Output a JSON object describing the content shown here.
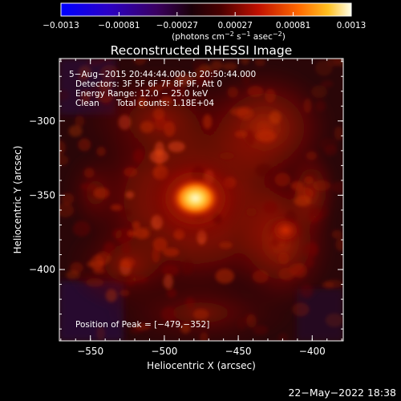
{
  "colorbar": {
    "tick_labels": [
      "−0.0013",
      "−0.00081",
      "−0.00027",
      "0.00027",
      "0.00081",
      "0.0013"
    ],
    "units_prefix": "(photons cm",
    "units_exp1": "−2",
    "units_mid1": " s",
    "units_exp2": "−1",
    "units_mid2": " asec",
    "units_exp3": "−2",
    "units_suffix": ")"
  },
  "title": "Reconstructed RHESSI Image",
  "annotations": {
    "time_range": "5−Aug−2015 20:44:44.000 to 20:50:44.000",
    "detectors": "Detectors: 3F 5F 6F 7F 8F 9F, Att 0",
    "energy": "Energy Range: 12.0 − 25.0 keV",
    "method": "Clean",
    "counts": "Total counts: 1.18E+04",
    "peak": "Position of Peak = [−479,−352]"
  },
  "axes": {
    "xlabel": "Heliocentric X (arcsec)",
    "ylabel": "Heliocentric Y (arcsec)",
    "x_ticks": [
      {
        "value": -550,
        "label": "−550"
      },
      {
        "value": -500,
        "label": "−500"
      },
      {
        "value": -450,
        "label": "−450"
      },
      {
        "value": -400,
        "label": "−400"
      }
    ],
    "y_ticks": [
      {
        "value": -300,
        "label": "−300"
      },
      {
        "value": -350,
        "label": "−350"
      },
      {
        "value": -400,
        "label": "−400"
      }
    ],
    "xlim": [
      -571,
      -379
    ],
    "ylim": [
      -448,
      -258
    ]
  },
  "peak_position": {
    "x": -479,
    "y": -352
  },
  "footer_timestamp": "22−May−2022 18:38"
}
